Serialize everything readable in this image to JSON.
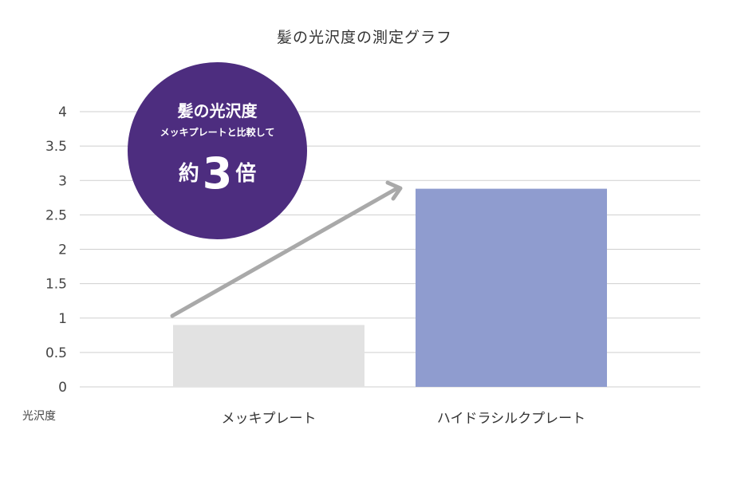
{
  "chart_data": {
    "type": "bar",
    "title": "髪の光沢度の測定グラフ",
    "ylabel": "光沢度",
    "categories": [
      "メッキプレート",
      "ハイドラシルクプレート"
    ],
    "values": [
      0.9,
      2.88
    ],
    "ylim": [
      0,
      4
    ],
    "yticks": [
      "0",
      "0.5",
      "1",
      "1.5",
      "2",
      "2.5",
      "3",
      "3.5",
      "4"
    ],
    "colors": [
      "#e2e2e2",
      "#8f9ccf"
    ],
    "grid": true,
    "annotation": {
      "line1": "髪の光沢度",
      "line2": "メッキプレートと比較して",
      "prefix": "約",
      "number": "3",
      "suffix": "倍",
      "color": "#4d2d7f"
    },
    "arrow_color": "#a9a9a9"
  }
}
